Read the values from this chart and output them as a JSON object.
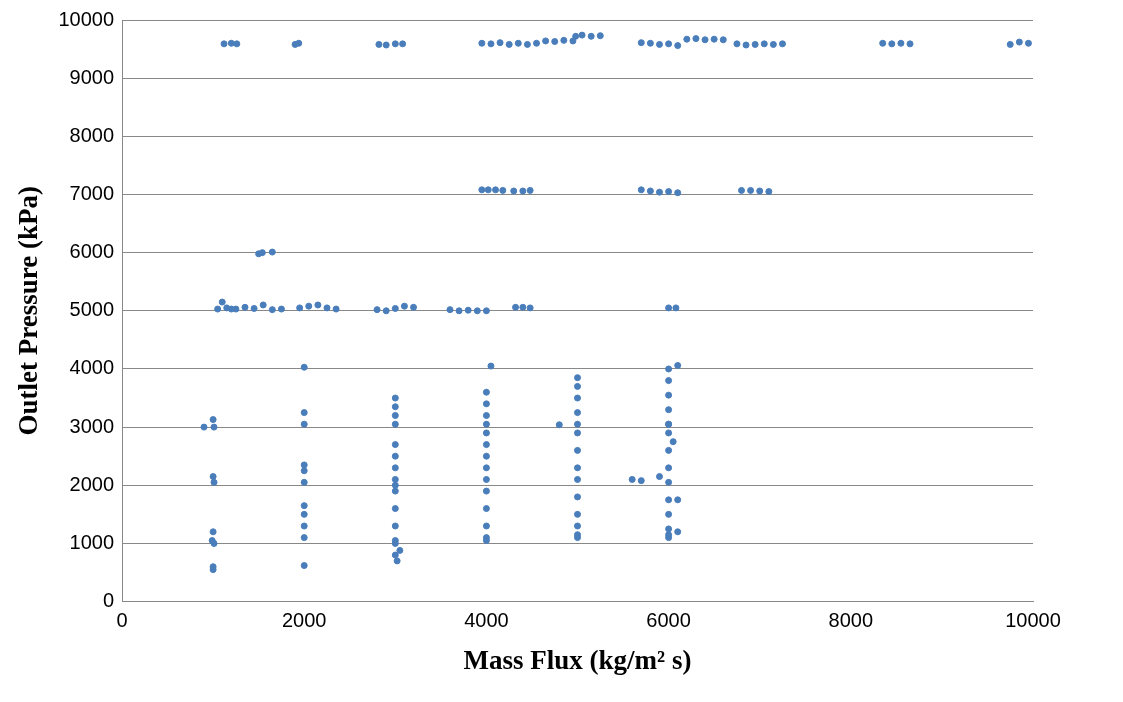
{
  "chart_data": {
    "type": "scatter",
    "xlabel": "Mass Flux (kg/m² s)",
    "ylabel": "Outlet Pressure (kPa)",
    "xlim": [
      0,
      10000
    ],
    "xticks": [
      0,
      2000,
      4000,
      6000,
      8000,
      10000
    ],
    "ylim": [
      0,
      10000
    ],
    "yticks": [
      0,
      1000,
      2000,
      3000,
      4000,
      5000,
      6000,
      7000,
      8000,
      9000,
      10000
    ],
    "grid": "y",
    "legend": false,
    "marker": "circle",
    "series": [
      {
        "color": "#4a7ebb",
        "x": [
          1120,
          1200,
          1260,
          1900,
          1940,
          2820,
          2900,
          3000,
          3080,
          3950,
          4050,
          4150,
          4250,
          4350,
          4450,
          4550,
          4650,
          4750,
          4850,
          4950,
          4980,
          5050,
          5150,
          5250,
          5700,
          5800,
          5900,
          6000,
          6100,
          6200,
          6300,
          6400,
          6500,
          6600,
          6750,
          6850,
          6950,
          7050,
          7150,
          7250,
          8350,
          8450,
          8550,
          8650,
          9750,
          9850,
          9950,
          3950,
          4020,
          4100,
          4180,
          4300,
          4400,
          4480,
          5700,
          5800,
          5900,
          6000,
          6100,
          6800,
          6900,
          7000,
          7100,
          1500,
          1540,
          1650,
          1050,
          1100,
          1150,
          1200,
          1250,
          1350,
          1450,
          1550,
          1650,
          1750,
          1950,
          2050,
          2150,
          2250,
          2350,
          2800,
          2900,
          3000,
          3100,
          3200,
          3600,
          3700,
          3800,
          3900,
          4000,
          4320,
          4400,
          4480,
          6000,
          6080,
          1000,
          990,
          1000,
          1010,
          1000,
          1010,
          1000,
          900,
          1000,
          1010,
          2000,
          2000,
          2000,
          2000,
          2000,
          2000,
          2000,
          2000,
          2000,
          2000,
          2000,
          3000,
          3020,
          3050,
          3000,
          3000,
          3000,
          3000,
          3000,
          3000,
          3000,
          3000,
          3000,
          3000,
          3000,
          3000,
          3000,
          3000,
          4000,
          4000,
          4000,
          4000,
          4000,
          4000,
          4000,
          4000,
          4000,
          4000,
          4000,
          4000,
          4000,
          4000,
          4050,
          5000,
          5000,
          5000,
          5000,
          5000,
          5000,
          5000,
          5000,
          5000,
          5000,
          5000,
          5000,
          5000,
          5000,
          4800,
          6000,
          6000,
          6000,
          6000,
          6000,
          6000,
          6000,
          6000,
          6000,
          6000,
          6000,
          6000,
          6000,
          6000,
          6000,
          6100,
          5600,
          5700,
          5900,
          6100,
          6050,
          6100
        ],
        "values": [
          9590,
          9600,
          9590,
          9580,
          9600,
          9580,
          9570,
          9590,
          9590,
          9600,
          9590,
          9610,
          9580,
          9600,
          9580,
          9600,
          9640,
          9630,
          9650,
          9640,
          9720,
          9740,
          9720,
          9730,
          9610,
          9600,
          9580,
          9590,
          9560,
          9670,
          9680,
          9660,
          9670,
          9660,
          9590,
          9570,
          9580,
          9590,
          9580,
          9590,
          9600,
          9590,
          9600,
          9590,
          9580,
          9620,
          9600,
          7080,
          7080,
          7080,
          7070,
          7060,
          7060,
          7070,
          7080,
          7060,
          7040,
          7050,
          7030,
          7070,
          7070,
          7060,
          7050,
          5980,
          6000,
          6010,
          5030,
          5150,
          5050,
          5030,
          5030,
          5060,
          5040,
          5100,
          5020,
          5030,
          5050,
          5080,
          5100,
          5050,
          5030,
          5020,
          5000,
          5040,
          5080,
          5060,
          5020,
          5000,
          5010,
          5000,
          5000,
          5060,
          5060,
          5050,
          5050,
          5050,
          550,
          1050,
          1200,
          2050,
          2150,
          3000,
          3130,
          3000,
          600,
          1000,
          620,
          1100,
          1300,
          1500,
          1650,
          2050,
          2250,
          2350,
          3050,
          3250,
          4030,
          800,
          700,
          880,
          1050,
          1300,
          1600,
          1900,
          2100,
          2300,
          2500,
          2700,
          3050,
          3200,
          3350,
          3500,
          1000,
          2000,
          1100,
          1300,
          1600,
          1900,
          2100,
          2300,
          2500,
          2700,
          2900,
          3050,
          3200,
          3400,
          3600,
          1050,
          4050,
          1150,
          1300,
          1500,
          1800,
          2100,
          2300,
          2600,
          2900,
          3050,
          3250,
          3500,
          3700,
          3850,
          1100,
          3040,
          1100,
          1250,
          1500,
          1750,
          2050,
          2300,
          2600,
          2900,
          3050,
          3300,
          3550,
          3800,
          4000,
          1150,
          3050,
          4060,
          2100,
          2080,
          2150,
          1750,
          2750,
          1200
        ]
      }
    ]
  }
}
